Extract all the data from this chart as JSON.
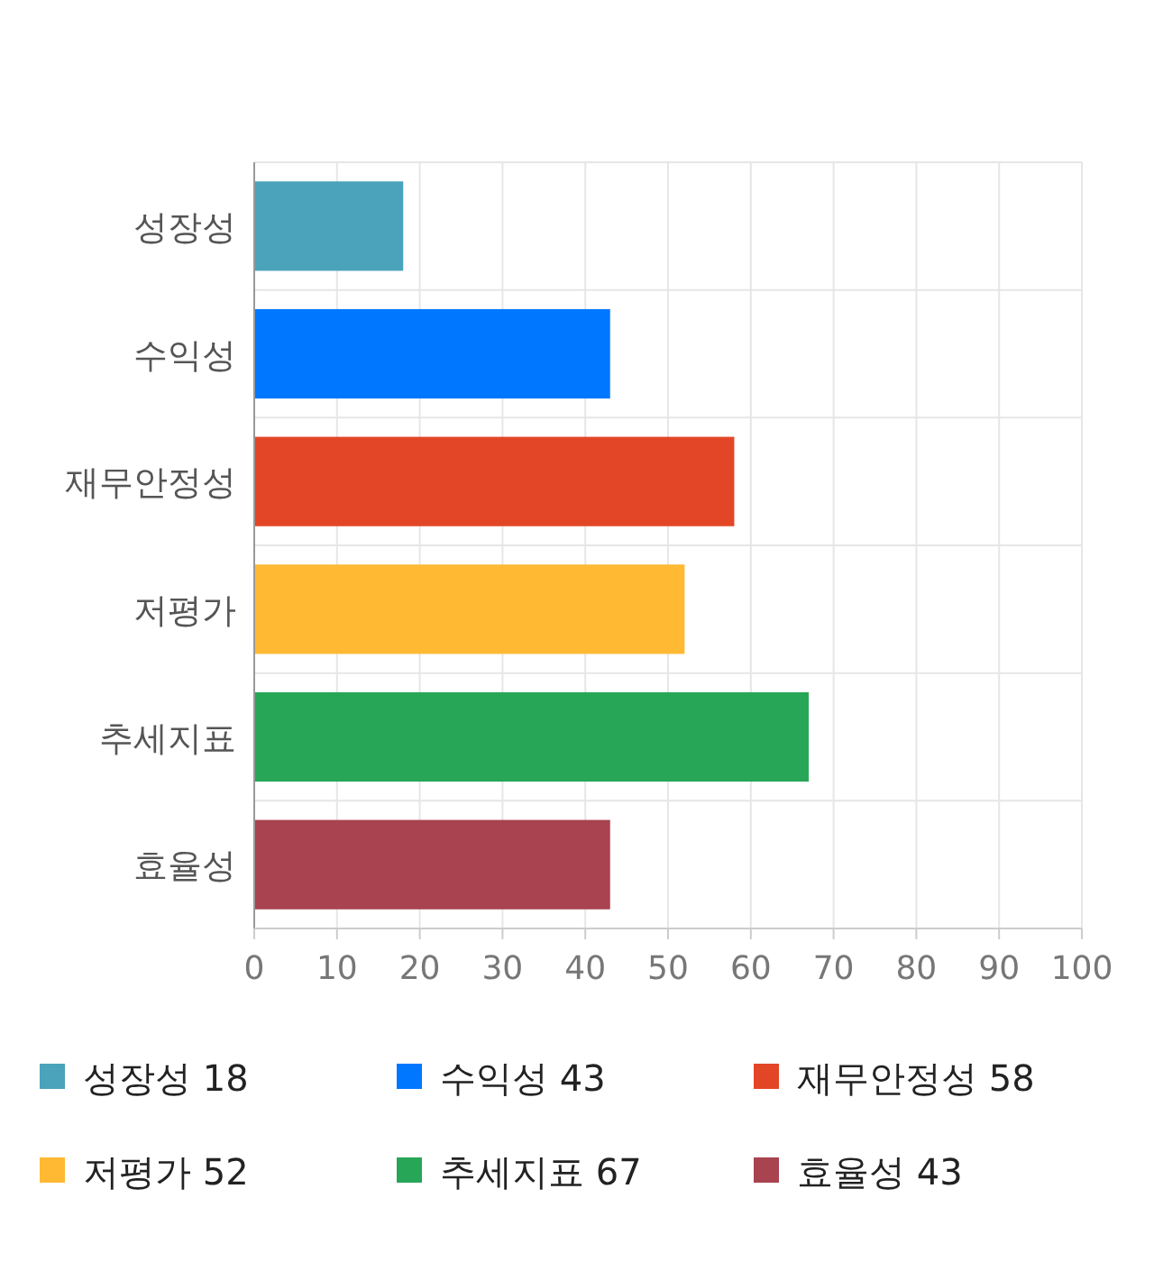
{
  "chart_data": {
    "type": "bar",
    "orientation": "horizontal",
    "stacked": true,
    "categories": [
      "성장성",
      "수익성",
      "재무안정성",
      "저평가",
      "추세지표",
      "효율성"
    ],
    "series": [
      {
        "name": "성장성 18",
        "color": "#4aa3bb",
        "values": [
          18,
          null,
          null,
          null,
          null,
          null
        ]
      },
      {
        "name": "수익성 43",
        "color": "#0077ff",
        "values": [
          null,
          43,
          null,
          null,
          null,
          null
        ]
      },
      {
        "name": "재무안정성 58",
        "color": "#e34626",
        "values": [
          null,
          null,
          58,
          null,
          null,
          null
        ]
      },
      {
        "name": "저평가 52",
        "color": "#ffb933",
        "values": [
          null,
          null,
          null,
          52,
          null,
          null
        ]
      },
      {
        "name": "추세지표 67",
        "color": "#27a658",
        "values": [
          null,
          null,
          null,
          null,
          67,
          null
        ]
      },
      {
        "name": "효율성 43",
        "color": "#a8434f",
        "values": [
          null,
          null,
          null,
          null,
          null,
          43
        ]
      }
    ],
    "xlim": [
      0,
      100
    ],
    "xticks": [
      0,
      10,
      20,
      30,
      40,
      50,
      60,
      70,
      80,
      90,
      100
    ],
    "grid": true,
    "legend": "bottom"
  }
}
